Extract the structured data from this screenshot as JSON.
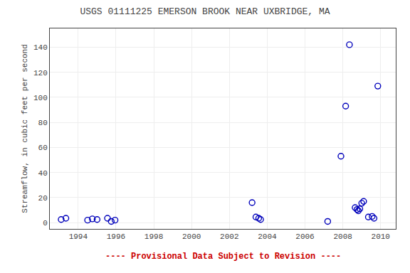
{
  "chart_data": {
    "type": "scatter",
    "title": "USGS 01111225 EMERSON BROOK NEAR UXBRIDGE, MA",
    "ylabel": "Streamflow, in cubic feet per second",
    "annotations": [
      {
        "text": "---- Provisional Data Subject to Revision ----",
        "color": "#CC0000"
      }
    ],
    "x": [
      1993.1,
      1993.35,
      1994.5,
      1994.75,
      1995.0,
      1995.55,
      1995.75,
      1995.95,
      2003.2,
      2003.4,
      2003.55,
      2003.65,
      2007.2,
      2007.9,
      2008.15,
      2008.35,
      2008.65,
      2008.75,
      2008.82,
      2008.9,
      2009.0,
      2009.1,
      2009.35,
      2009.55,
      2009.65,
      2009.85
    ],
    "values": [
      2.5,
      3.5,
      2.0,
      3.0,
      2.5,
      3.5,
      1.0,
      2.0,
      16.0,
      4.5,
      3.5,
      2.5,
      1.0,
      53.0,
      93.0,
      142.0,
      12.0,
      10.5,
      9.5,
      11.0,
      15.5,
      17.0,
      4.5,
      5.0,
      3.5,
      109.0
    ],
    "color": "#0000BB",
    "marker": "circle-open",
    "xlim": [
      1992.5,
      2010.8
    ],
    "ylim": [
      -5,
      155
    ],
    "xticks": [
      1994,
      1996,
      1998,
      2000,
      2002,
      2004,
      2006,
      2008,
      2010
    ],
    "yticks": [
      0,
      20,
      40,
      60,
      80,
      100,
      120,
      140
    ],
    "grid": true
  }
}
